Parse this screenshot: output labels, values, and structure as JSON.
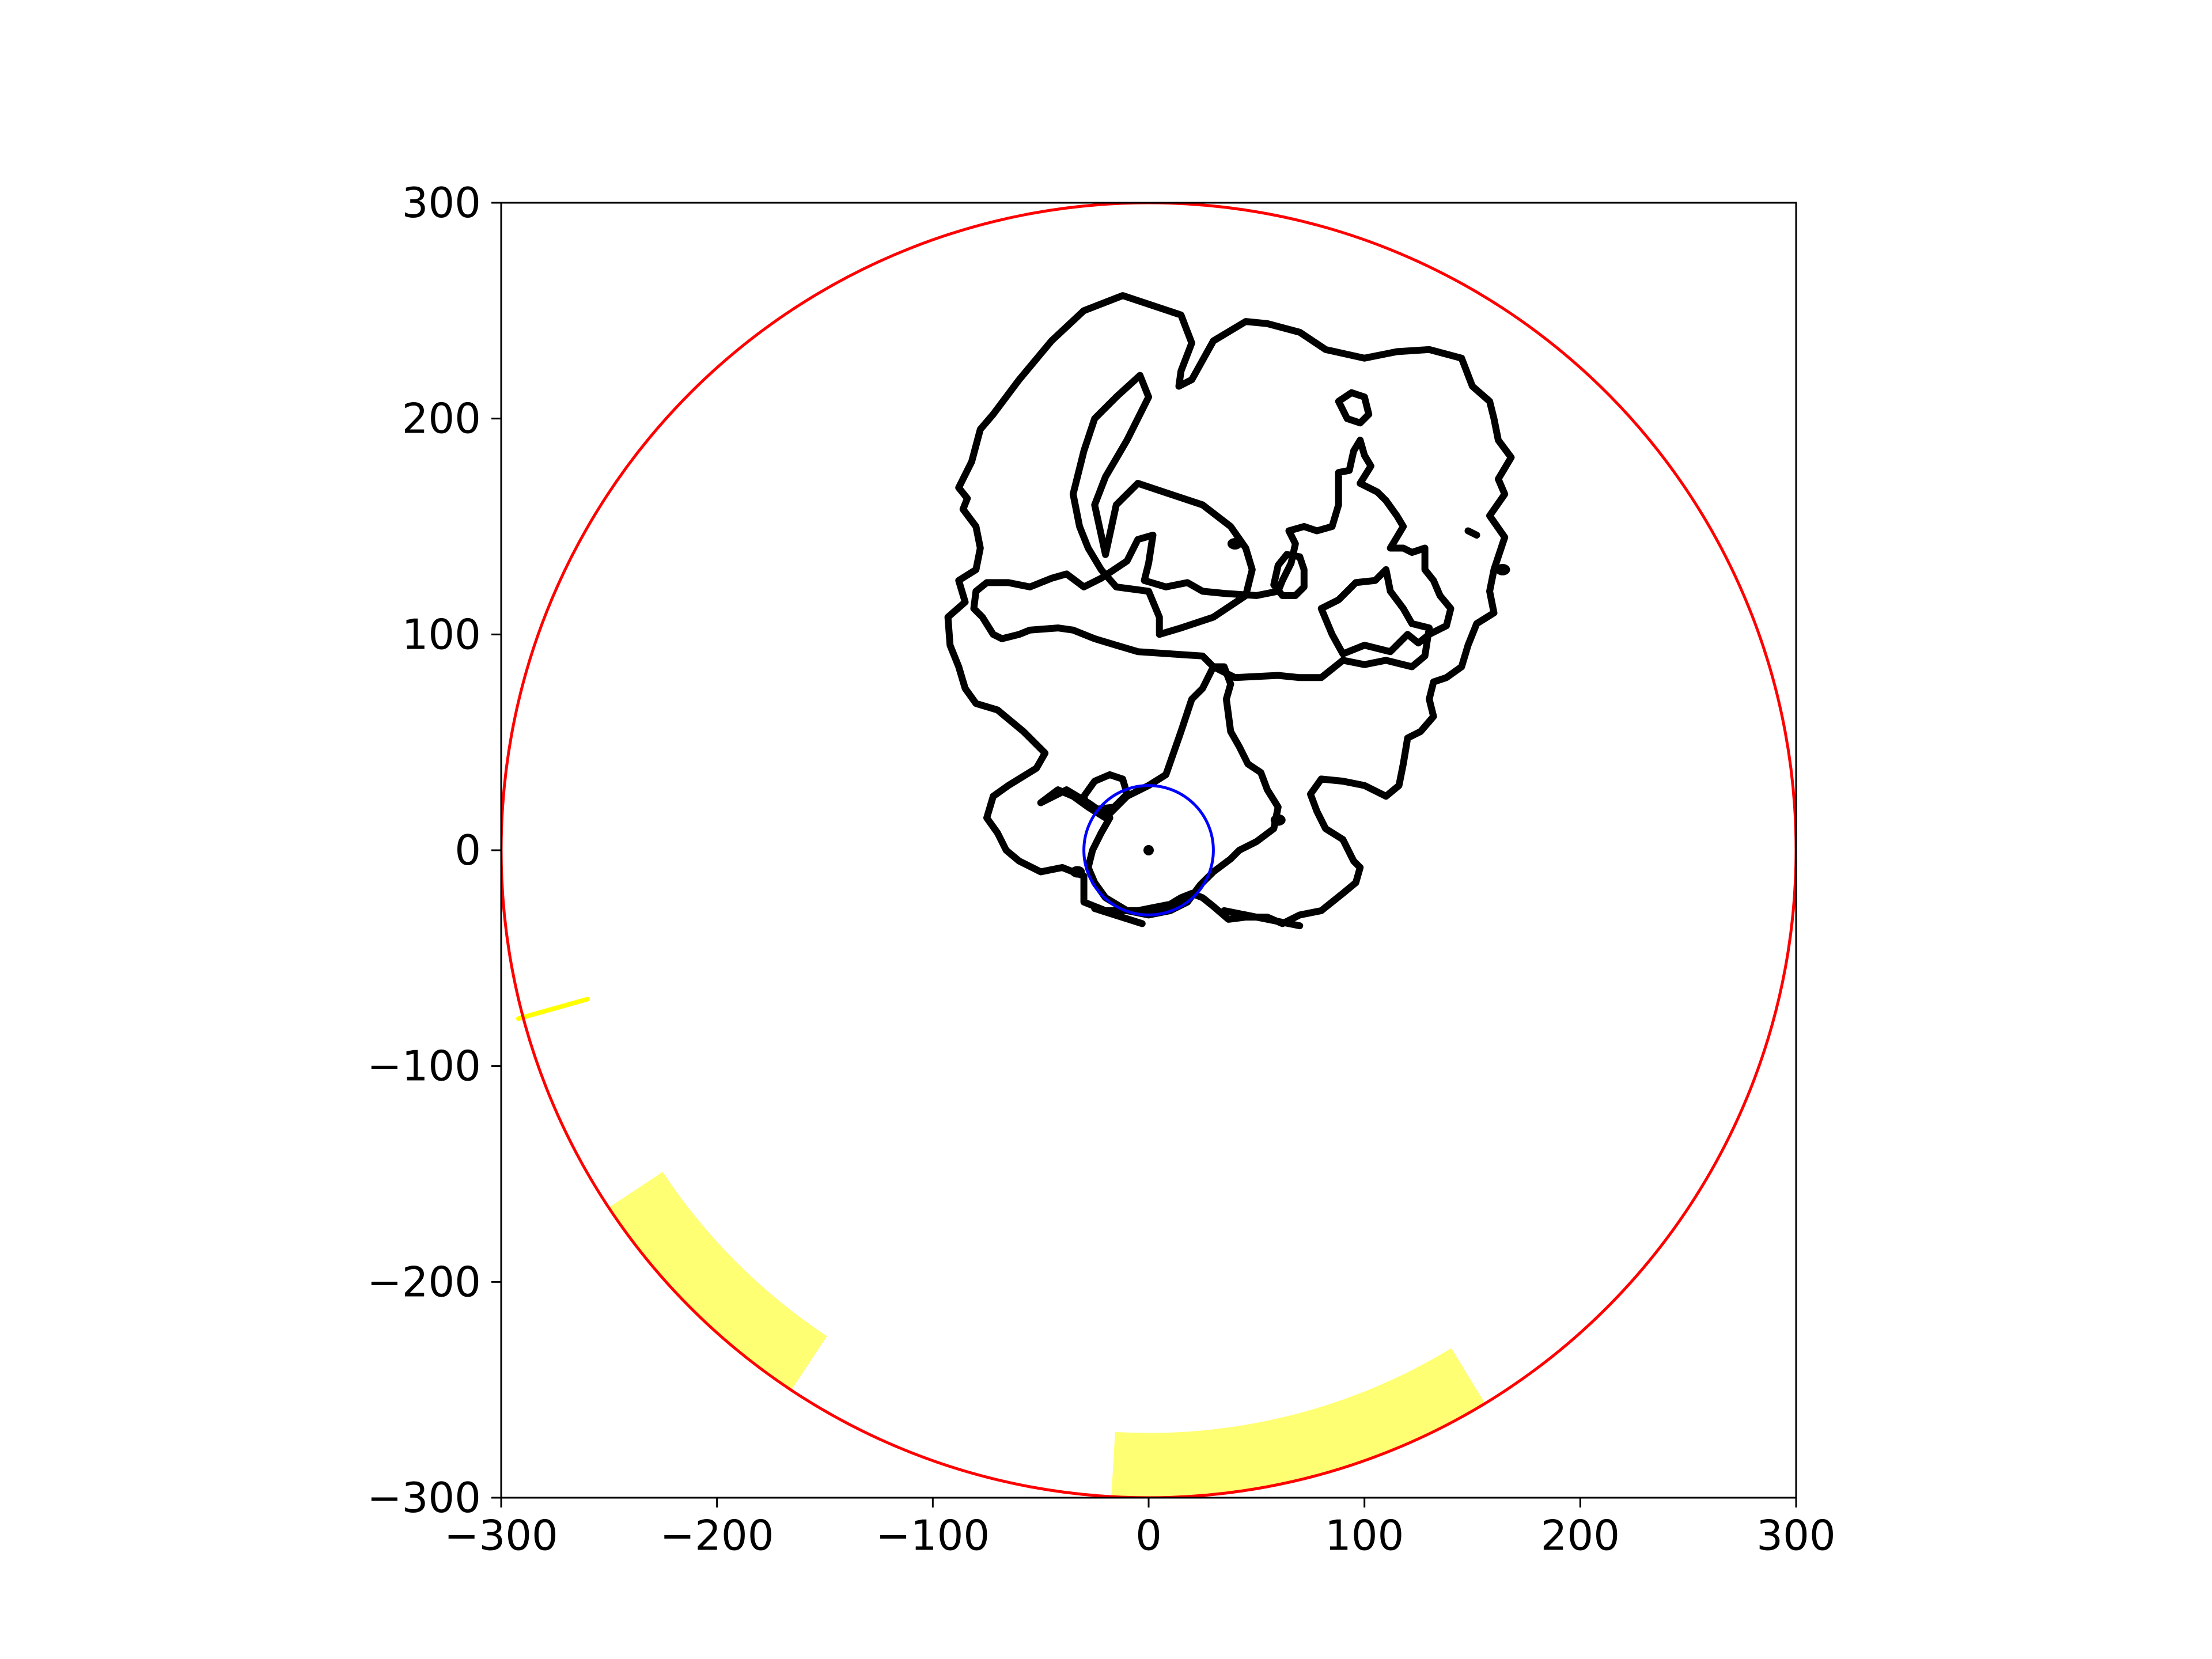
{
  "chart_data": {
    "type": "scatter",
    "title": "",
    "xlabel": "",
    "ylabel": "",
    "xlim": [
      -300,
      300
    ],
    "ylim": [
      -300,
      300
    ],
    "aspect": "equal",
    "grid": false,
    "legend": "none",
    "x_ticks": [
      -300,
      -200,
      -100,
      0,
      100,
      200,
      300
    ],
    "y_ticks": [
      -300,
      -200,
      -100,
      0,
      100,
      200,
      300
    ],
    "x_tick_labels": [
      "−300",
      "−200",
      "−100",
      "0",
      "100",
      "200",
      "300"
    ],
    "y_tick_labels": [
      "−300",
      "−200",
      "−100",
      "0",
      "100",
      "200",
      "300"
    ],
    "colors": {
      "boundary_circle": "#ff0000",
      "center_circle": "#0000ff",
      "contours": "#000000",
      "highlight": "#ffff00",
      "highlight_outline": "#ff8c00"
    },
    "boundary_circle": {
      "center": [
        0,
        0
      ],
      "radius": 300
    },
    "center_circle": {
      "center": [
        0,
        0
      ],
      "radius": 30
    },
    "center_point": [
      0,
      0
    ],
    "annular_sectors": [
      {
        "inner_radius": 270,
        "outer_radius": 300,
        "start_angle_deg": 213.5,
        "end_angle_deg": 236.5
      },
      {
        "inner_radius": 270,
        "outer_radius": 300,
        "start_angle_deg": 266.7,
        "end_angle_deg": 301.3
      }
    ],
    "highlight_segment": {
      "from": [
        -292,
        -78
      ],
      "to": [
        -260,
        -69
      ]
    },
    "contours": [
      {
        "name": "outer",
        "points": [
          [
            -88,
            168
          ],
          [
            -82,
            180
          ],
          [
            -78,
            195
          ],
          [
            -72,
            202
          ],
          [
            -60,
            218
          ],
          [
            -45,
            236
          ],
          [
            -30,
            250
          ],
          [
            -12,
            257
          ],
          [
            0,
            253
          ],
          [
            15,
            248
          ],
          [
            20,
            235
          ],
          [
            15,
            222
          ],
          [
            14,
            215
          ],
          [
            20,
            218
          ],
          [
            30,
            236
          ],
          [
            45,
            245
          ],
          [
            55,
            244
          ],
          [
            70,
            240
          ],
          [
            82,
            232
          ],
          [
            100,
            228
          ],
          [
            115,
            231
          ],
          [
            130,
            232
          ],
          [
            145,
            228
          ],
          [
            150,
            215
          ],
          [
            158,
            208
          ],
          [
            160,
            200
          ],
          [
            162,
            190
          ],
          [
            168,
            182
          ],
          [
            162,
            172
          ],
          [
            165,
            165
          ],
          [
            158,
            155
          ],
          [
            165,
            145
          ],
          [
            160,
            130
          ],
          [
            158,
            120
          ],
          [
            160,
            110
          ],
          [
            152,
            105
          ],
          [
            148,
            95
          ],
          [
            145,
            85
          ],
          [
            138,
            80
          ],
          [
            132,
            78
          ],
          [
            130,
            70
          ],
          [
            132,
            62
          ],
          [
            126,
            55
          ],
          [
            120,
            52
          ],
          [
            118,
            40
          ],
          [
            116,
            30
          ],
          [
            110,
            25
          ],
          [
            100,
            30
          ],
          [
            90,
            32
          ],
          [
            80,
            33
          ],
          [
            75,
            26
          ],
          [
            78,
            18
          ],
          [
            82,
            10
          ],
          [
            90,
            5
          ],
          [
            95,
            -5
          ],
          [
            98,
            -8
          ],
          [
            96,
            -15
          ],
          [
            90,
            -20
          ],
          [
            80,
            -28
          ],
          [
            70,
            -30
          ],
          [
            62,
            -34
          ],
          [
            55,
            -31
          ],
          [
            45,
            -31
          ],
          [
            37,
            -32
          ],
          [
            30,
            -26
          ],
          [
            25,
            -22
          ],
          [
            20,
            -20
          ],
          [
            15,
            -22
          ],
          [
            10,
            -25
          ],
          [
            -5,
            -28
          ],
          [
            -20,
            -28
          ],
          [
            -30,
            -24
          ],
          [
            -30,
            -12
          ],
          [
            -40,
            -8
          ],
          [
            -50,
            -10
          ],
          [
            -60,
            -5
          ],
          [
            -66,
            0
          ],
          [
            -70,
            8
          ],
          [
            -75,
            15
          ],
          [
            -72,
            25
          ],
          [
            -65,
            30
          ],
          [
            -52,
            38
          ],
          [
            -48,
            45
          ],
          [
            -58,
            55
          ],
          [
            -70,
            65
          ],
          [
            -80,
            68
          ],
          [
            -85,
            75
          ],
          [
            -88,
            85
          ],
          [
            -92,
            95
          ],
          [
            -93,
            108
          ],
          [
            -85,
            115
          ],
          [
            -88,
            125
          ],
          [
            -80,
            130
          ],
          [
            -78,
            140
          ],
          [
            -80,
            150
          ],
          [
            -86,
            158
          ],
          [
            -84,
            163
          ]
        ]
      },
      {
        "name": "inner_band",
        "points": [
          [
            -80,
            120
          ],
          [
            -75,
            124
          ],
          [
            -65,
            124
          ],
          [
            -55,
            122
          ],
          [
            -45,
            126
          ],
          [
            -38,
            128
          ],
          [
            -30,
            122
          ],
          [
            -22,
            126
          ],
          [
            -10,
            134
          ],
          [
            -5,
            144
          ],
          [
            2,
            146
          ],
          [
            0,
            133
          ],
          [
            -2,
            125
          ],
          [
            8,
            122
          ],
          [
            18,
            124
          ],
          [
            25,
            120
          ],
          [
            35,
            119
          ],
          [
            50,
            118
          ],
          [
            60,
            120
          ],
          [
            62,
            125
          ],
          [
            66,
            133
          ],
          [
            68,
            142
          ],
          [
            65,
            148
          ],
          [
            72,
            150
          ],
          [
            78,
            148
          ],
          [
            85,
            150
          ],
          [
            88,
            160
          ],
          [
            88,
            175
          ],
          [
            93,
            176
          ],
          [
            95,
            185
          ],
          [
            98,
            190
          ],
          [
            100,
            183
          ],
          [
            103,
            178
          ],
          [
            98,
            170
          ],
          [
            106,
            166
          ],
          [
            110,
            162
          ],
          [
            115,
            155
          ],
          [
            118,
            150
          ],
          [
            112,
            140
          ],
          [
            118,
            140
          ],
          [
            122,
            138
          ],
          [
            128,
            140
          ],
          [
            128,
            130
          ],
          [
            132,
            125
          ],
          [
            135,
            118
          ],
          [
            140,
            112
          ],
          [
            138,
            104
          ],
          [
            130,
            100
          ],
          [
            125,
            96
          ],
          [
            120,
            100
          ],
          [
            112,
            92
          ],
          [
            100,
            95
          ],
          [
            90,
            91
          ],
          [
            85,
            100
          ],
          [
            80,
            112
          ],
          [
            88,
            116
          ],
          [
            96,
            124
          ],
          [
            105,
            125
          ],
          [
            110,
            130
          ],
          [
            112,
            120
          ],
          [
            118,
            112
          ],
          [
            122,
            105
          ],
          [
            130,
            103
          ],
          [
            128,
            90
          ],
          [
            122,
            85
          ],
          [
            110,
            88
          ],
          [
            100,
            86
          ],
          [
            90,
            88
          ],
          [
            80,
            80
          ],
          [
            70,
            80
          ],
          [
            60,
            81
          ],
          [
            40,
            80
          ],
          [
            30,
            85
          ],
          [
            25,
            90
          ],
          [
            -5,
            92
          ],
          [
            -15,
            95
          ],
          [
            -25,
            98
          ],
          [
            -35,
            102
          ],
          [
            -42,
            103
          ],
          [
            -55,
            102
          ],
          [
            -60,
            100
          ],
          [
            -68,
            98
          ],
          [
            -72,
            100
          ],
          [
            -77,
            108
          ],
          [
            -81,
            112
          ]
        ]
      },
      {
        "name": "notch",
        "points": [
          [
            -20,
            137
          ],
          [
            -25,
            160
          ],
          [
            -20,
            173
          ],
          [
            -10,
            190
          ],
          [
            0,
            210
          ],
          [
            -4,
            220
          ],
          [
            -15,
            210
          ],
          [
            -25,
            200
          ],
          [
            -30,
            185
          ],
          [
            -35,
            165
          ],
          [
            -32,
            150
          ],
          [
            -28,
            140
          ],
          [
            -22,
            130
          ],
          [
            -15,
            122
          ],
          [
            0,
            120
          ],
          [
            5,
            108
          ],
          [
            5,
            100
          ],
          [
            15,
            103
          ],
          [
            30,
            108
          ],
          [
            45,
            118
          ],
          [
            48,
            130
          ],
          [
            45,
            140
          ],
          [
            38,
            150
          ],
          [
            25,
            160
          ],
          [
            10,
            165
          ],
          [
            -5,
            170
          ],
          [
            -15,
            160
          ]
        ]
      },
      {
        "name": "lower_lobe",
        "points": [
          [
            -50,
            22
          ],
          [
            -42,
            28
          ],
          [
            -35,
            25
          ],
          [
            -28,
            20
          ],
          [
            -20,
            15
          ],
          [
            -10,
            25
          ],
          [
            0,
            30
          ],
          [
            8,
            35
          ],
          [
            15,
            55
          ],
          [
            20,
            70
          ],
          [
            25,
            75
          ],
          [
            30,
            85
          ],
          [
            35,
            85
          ],
          [
            38,
            77
          ],
          [
            36,
            70
          ],
          [
            38,
            55
          ],
          [
            42,
            48
          ],
          [
            46,
            40
          ],
          [
            52,
            36
          ],
          [
            55,
            28
          ],
          [
            60,
            20
          ],
          [
            58,
            10
          ],
          [
            50,
            4
          ],
          [
            42,
            0
          ],
          [
            38,
            -4
          ],
          [
            30,
            -10
          ],
          [
            24,
            -16
          ],
          [
            18,
            -24
          ],
          [
            10,
            -28
          ],
          [
            0,
            -30
          ],
          [
            -10,
            -28
          ],
          [
            -20,
            -22
          ],
          [
            -25,
            -15
          ],
          [
            -28,
            -8
          ],
          [
            -26,
            0
          ],
          [
            -22,
            8
          ],
          [
            -18,
            15
          ],
          [
            -28,
            22
          ],
          [
            -38,
            28
          ]
        ]
      },
      {
        "name": "loop_a",
        "points": [
          [
            -30,
            25
          ],
          [
            -25,
            32
          ],
          [
            -18,
            35
          ],
          [
            -12,
            33
          ],
          [
            -10,
            26
          ],
          [
            -16,
            20
          ],
          [
            -24,
            19
          ],
          [
            -29,
            21
          ]
        ]
      },
      {
        "name": "loop_b",
        "points": [
          [
            58,
            123
          ],
          [
            62,
            118
          ],
          [
            68,
            118
          ],
          [
            72,
            122
          ],
          [
            72,
            130
          ],
          [
            70,
            136
          ],
          [
            64,
            137
          ],
          [
            60,
            132
          ]
        ]
      },
      {
        "name": "loop_c",
        "points": [
          [
            88,
            208
          ],
          [
            92,
            200
          ],
          [
            98,
            198
          ],
          [
            102,
            202
          ],
          [
            100,
            210
          ],
          [
            94,
            212
          ]
        ]
      },
      {
        "name": "stub_a",
        "points": [
          [
            -25,
            -27
          ],
          [
            -3,
            -34
          ]
        ]
      },
      {
        "name": "stub_b",
        "points": [
          [
            35,
            -28
          ],
          [
            70,
            -35
          ]
        ]
      },
      {
        "name": "stub_c",
        "points": [
          [
            148,
            148
          ],
          [
            152,
            146
          ]
        ]
      }
    ],
    "blobs": [
      [
        40,
        142
      ],
      [
        60,
        14
      ],
      [
        -33,
        -10
      ],
      [
        164,
        130
      ]
    ]
  }
}
